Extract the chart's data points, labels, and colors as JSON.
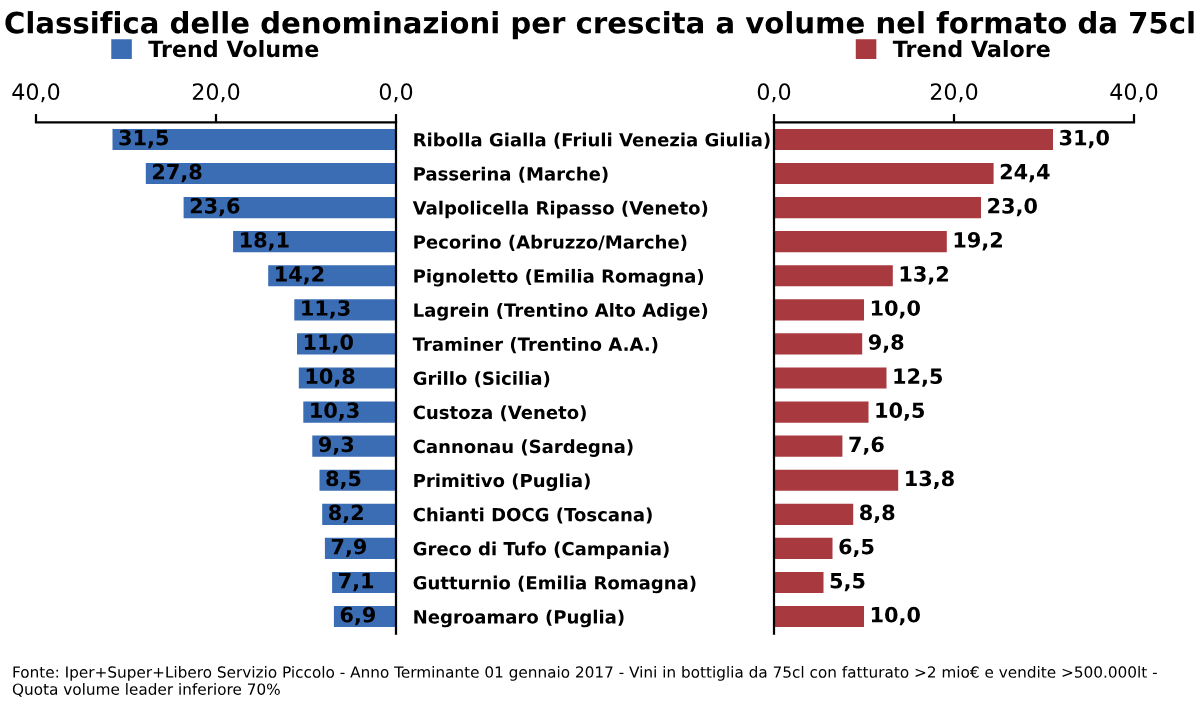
{
  "chart_data": [
    {
      "type": "bar",
      "orientation": "horizontal",
      "title": "Classifica delle denominazioni per crescita a volume nel formato da 75cl",
      "categories": [
        "Ribolla Gialla (Friuli Venezia Giulia)",
        "Passerina (Marche)",
        "Valpolicella Ripasso (Veneto)",
        "Pecorino (Abruzzo/Marche)",
        "Pignoletto (Emilia Romagna)",
        "Lagrein (Trentino Alto Adige)",
        "Traminer (Trentino A.A.)",
        "Grillo (Sicilia)",
        "Custoza (Veneto)",
        "Cannonau (Sardegna)",
        "Primitivo (Puglia)",
        "Chianti DOCG (Toscana)",
        "Greco di Tufo (Campania)",
        "Gutturnio (Emilia Romagna)",
        "Negroamaro (Puglia)"
      ],
      "series": [
        {
          "name": "Trend Volume",
          "color": "#3b6db4",
          "values": [
            31.5,
            27.8,
            23.6,
            18.1,
            14.2,
            11.3,
            11.0,
            10.8,
            10.3,
            9.3,
            8.5,
            8.2,
            7.9,
            7.1,
            6.9
          ],
          "value_labels": [
            "31,5",
            "27,8",
            "23,6",
            "18,1",
            "14,2",
            "11,3",
            "11,0",
            "10,8",
            "10,3",
            "9,3",
            "8,5",
            "8,2",
            "7,9",
            "7,1",
            "6,9"
          ]
        }
      ],
      "xlim": [
        40,
        0
      ],
      "xticks": [
        {
          "value": 0,
          "label": "0,0"
        },
        {
          "value": 20,
          "label": "20,0"
        },
        {
          "value": 40,
          "label": "40,0"
        }
      ],
      "legend": "top",
      "grid": false,
      "annotations": [
        "Fonte: Iper+Super+Libero Servizio Piccolo - Anno Terminante 01 gennaio 2017 - Vini in bottiglia da 75cl con fatturato >2 mio€ e vendite >500.000lt - Quota volume leader inferiore 70%"
      ]
    },
    {
      "type": "bar",
      "orientation": "horizontal",
      "categories": [
        null,
        null,
        null,
        null,
        null,
        null,
        null,
        null,
        null,
        null,
        null,
        null,
        null,
        null,
        null
      ],
      "series": [
        {
          "name": "Trend Valore",
          "color": "#a8393e",
          "values": [
            31.0,
            24.4,
            23.0,
            19.2,
            13.2,
            10.0,
            9.8,
            12.5,
            10.5,
            7.6,
            13.8,
            8.8,
            6.5,
            5.5,
            10.0
          ],
          "value_labels": [
            "31,0",
            "24,4",
            "23,0",
            "19,2",
            "13,2",
            "10,0",
            "9,8",
            "12,5",
            "10,5",
            "7,6",
            "13,8",
            "8,8",
            "6,5",
            "5,5",
            "10,0"
          ]
        }
      ],
      "xlim": [
        0,
        40
      ],
      "xticks": [
        {
          "value": 0,
          "label": "0,0"
        },
        {
          "value": 20,
          "label": "20,0"
        },
        {
          "value": 40,
          "label": "40,0"
        }
      ],
      "legend": "top",
      "grid": false
    }
  ]
}
